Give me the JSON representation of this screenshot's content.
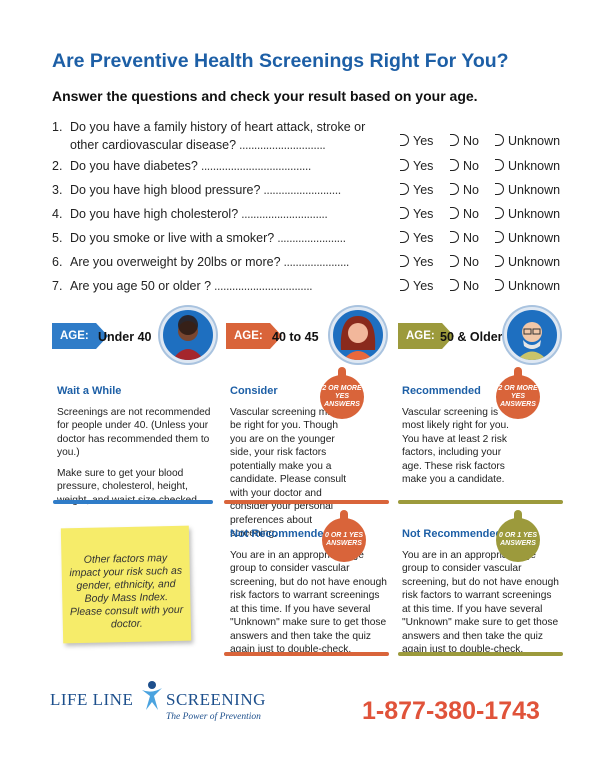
{
  "title": "Are Preventive Health Screenings Right For You?",
  "subtitle": "Answer the questions and check your result based on your age.",
  "options": {
    "yes": "Yes",
    "no": "No",
    "unknown": "Unknown"
  },
  "questions": [
    {
      "num": "1.",
      "line1": "Do you have a family history of heart attack, stroke or",
      "line2": "other cardiovascular disease?"
    },
    {
      "num": "2.",
      "line1": "Do you have diabetes?"
    },
    {
      "num": "3.",
      "line1": "Do you have high blood pressure?"
    },
    {
      "num": "4.",
      "line1": "Do you have high cholesterol?"
    },
    {
      "num": "5.",
      "line1": "Do you smoke or live with a smoker?"
    },
    {
      "num": "6.",
      "line1": "Are you overweight by 20lbs or more?"
    },
    {
      "num": "7.",
      "line1": "Are you age 50 or older ?"
    }
  ],
  "age_label": "AGE:",
  "age_groups": [
    {
      "range": "Under 40",
      "color": "#2f7cc8"
    },
    {
      "range": "40 to 45",
      "color": "#d9643a"
    },
    {
      "range": "50 & Older",
      "color": "#9c9a3c"
    }
  ],
  "cards": {
    "wait": {
      "heading": "Wait a While",
      "p1": "Screenings are not recommended for people under 40. (Unless your doctor has recommended them to you.)",
      "p2": "Make sure to get your blood pressure, cholesterol, height, weight, and waist size checked."
    },
    "consider": {
      "heading": "Consider",
      "badge": "2 OR MORE YES ANSWERS",
      "p1": "Vascular screening may be right for you. Though you are on the younger side, your risk factors potentially make you a candidate. Please consult with your doctor and consider your personal preferences about screening."
    },
    "recommended": {
      "heading": "Recommended",
      "badge": "2 OR MORE YES ANSWERS",
      "p1": "Vascular screening is most likely right for you. You have at least 2 risk factors, including your age. These risk factors make you a candidate."
    },
    "not_rec_1": {
      "heading": "Not Recommended",
      "badge": "0 OR 1 YES ANSWERS",
      "p1": "You are in an appropriate age group to consider vascular screening, but do not have enough risk factors to warrant screenings at this time. If you have several \"Unknown\" make sure to get those answers and then take the quiz again just to double-check."
    },
    "not_rec_2": {
      "heading": "Not Recommended",
      "badge": "0 OR 1 YES ANSWERS",
      "p1": "You are in an appropriate age group to consider vascular screening, but do not have enough risk factors to warrant screenings at this time. If you have several \"Unknown\" make sure to get those answers and then take the quiz again just to double-check."
    }
  },
  "sticky_note": "Other factors may impact your risk such as gender, ethnicity, and Body Mass Index. Please consult with your doctor.",
  "logo": {
    "name_left": "LIFE LINE",
    "name_right": "SCREENING",
    "tagline": "The Power of Prevention"
  },
  "phone": "1-877-380-1743",
  "colors": {
    "blue": "#1d5fa6",
    "orange": "#d9643a",
    "olive": "#9c9a3c",
    "phone": "#e0533a"
  }
}
